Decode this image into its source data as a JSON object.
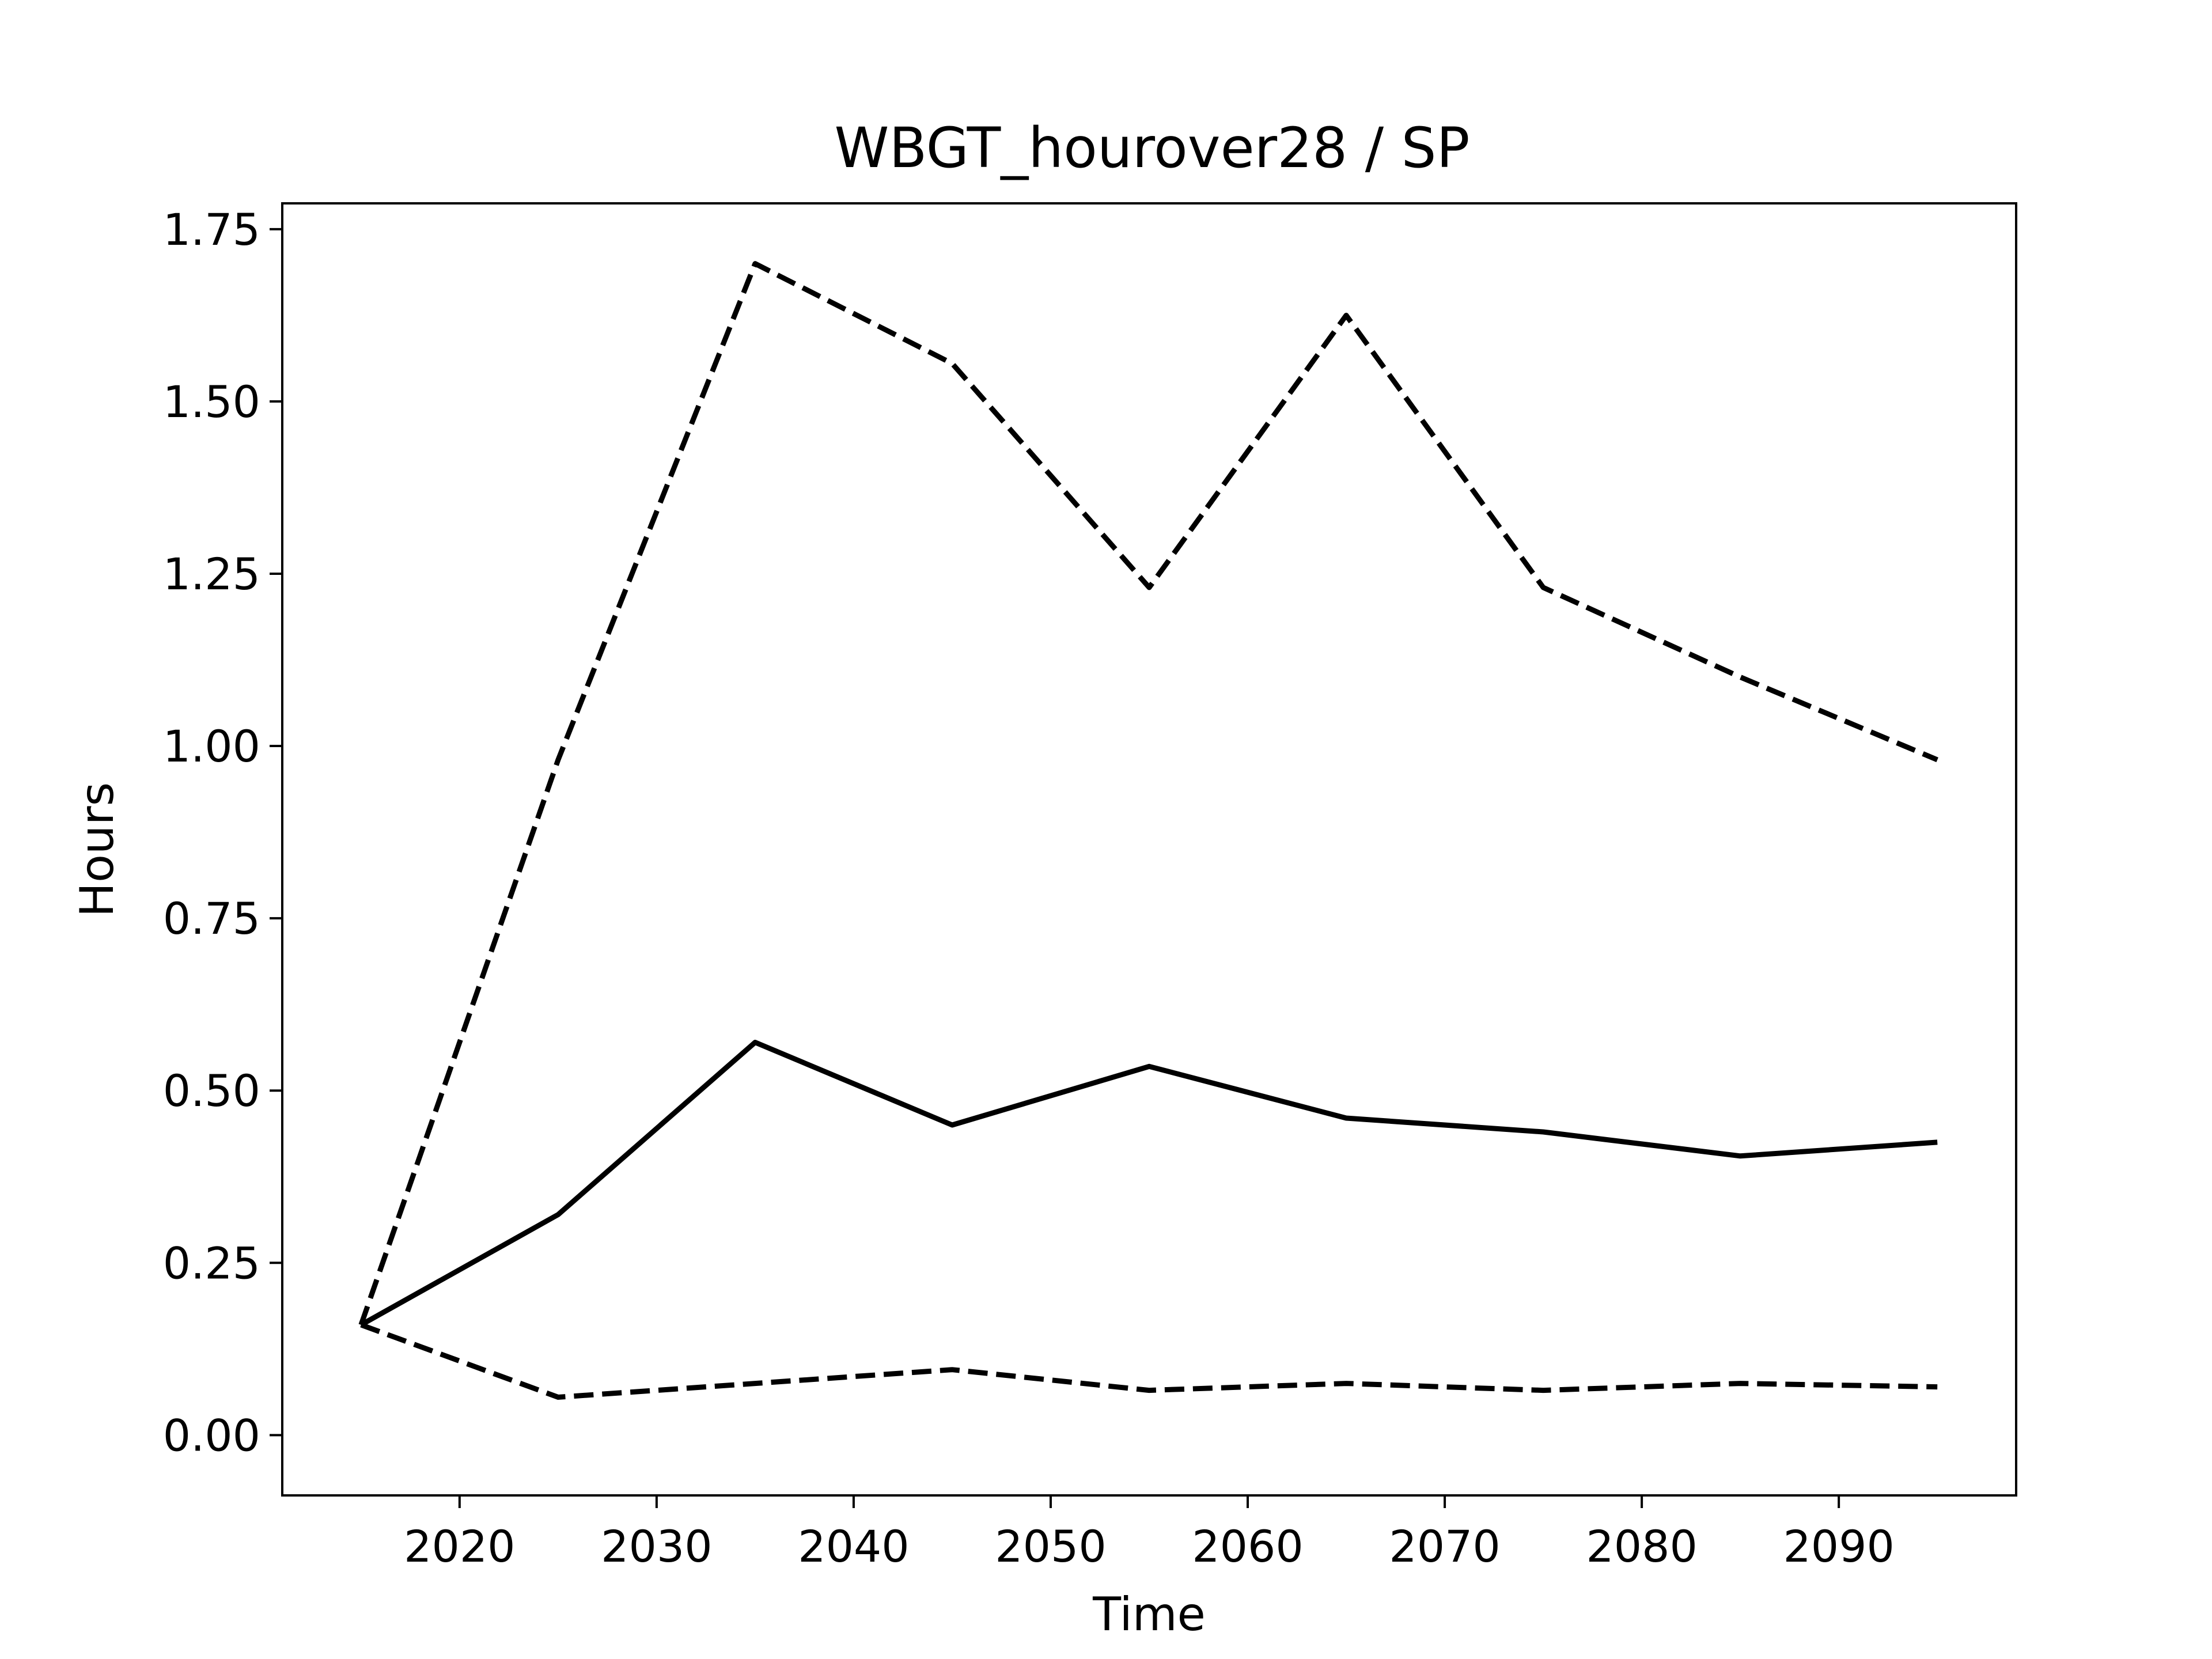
{
  "chart_data": {
    "type": "line",
    "title": "WBGT_hourover28 / SP",
    "xlabel": "Time",
    "ylabel": "Hours",
    "xlim": [
      2011,
      2099
    ],
    "ylim": [
      -0.0875,
      1.7875
    ],
    "xticks": [
      2020,
      2030,
      2040,
      2050,
      2060,
      2070,
      2080,
      2090
    ],
    "xtick_labels": [
      "2020",
      "2030",
      "2040",
      "2050",
      "2060",
      "2070",
      "2080",
      "2090"
    ],
    "yticks": [
      0,
      0.25,
      0.5,
      0.75,
      1.0,
      1.25,
      1.5,
      1.75
    ],
    "ytick_labels": [
      "0.00",
      "0.25",
      "0.50",
      "0.75",
      "1.00",
      "1.25",
      "1.50",
      "1.75"
    ],
    "grid": false,
    "x": [
      2015,
      2025,
      2035,
      2045,
      2055,
      2065,
      2075,
      2085,
      2095
    ],
    "series": [
      {
        "style": "solid",
        "color": "#000000",
        "values": [
          0.16,
          0.32,
          0.57,
          0.45,
          0.535,
          0.46,
          0.44,
          0.405,
          0.425
        ]
      },
      {
        "style": "dashed",
        "color": "#000000",
        "values": [
          0.16,
          0.98,
          1.7,
          1.555,
          1.23,
          1.625,
          1.23,
          1.1,
          0.98
        ]
      },
      {
        "style": "dashed",
        "color": "#000000",
        "values": [
          0.16,
          0.055,
          0.075,
          0.095,
          0.065,
          0.075,
          0.065,
          0.075,
          0.07
        ]
      }
    ]
  }
}
